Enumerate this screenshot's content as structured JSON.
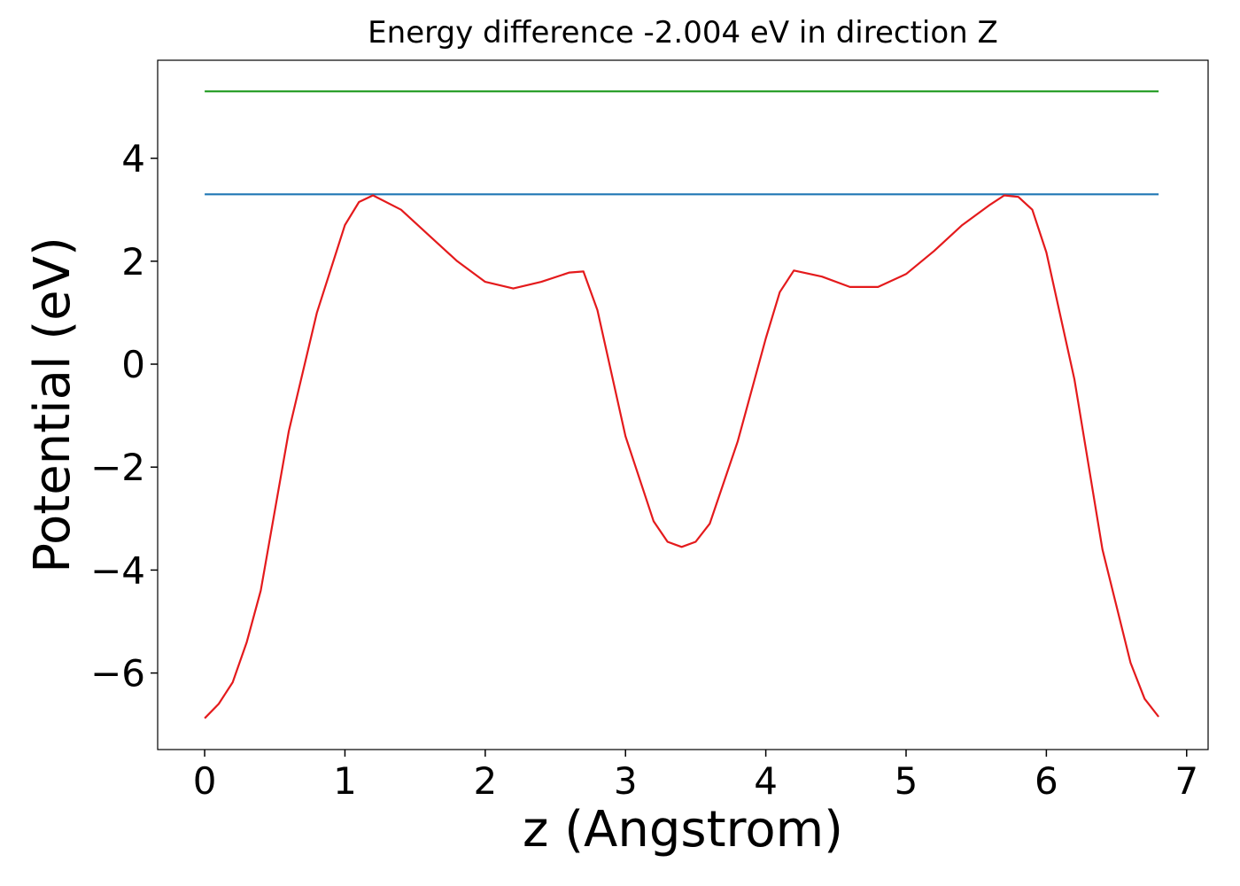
{
  "chart_data": {
    "type": "line",
    "title": "Energy difference -2.004 eV in direction Z",
    "x_label": "z (Angstrom)",
    "y_label": "Potential (eV)",
    "xlim": [
      -0.335,
      7.153
    ],
    "ylim": [
      -7.487,
      5.904
    ],
    "xticks": [
      0,
      1,
      2,
      3,
      4,
      5,
      6,
      7
    ],
    "yticks": [
      {
        "value": -6,
        "label": "−6"
      },
      {
        "value": -4,
        "label": "−4"
      },
      {
        "value": -2,
        "label": "−2"
      },
      0,
      2,
      4
    ],
    "series": [
      {
        "color": "#1f77b4",
        "x": [
          0,
          6.8
        ],
        "values": [
          3.3,
          3.3
        ]
      },
      {
        "color": "#2ca02c",
        "x": [
          0,
          6.8
        ],
        "values": [
          5.3,
          5.3
        ]
      },
      {
        "color": "#e41a1c",
        "x": [
          0,
          0.1,
          0.2,
          0.3,
          0.4,
          0.6,
          0.8,
          1.0,
          1.1,
          1.2,
          1.4,
          1.6,
          1.8,
          2.0,
          2.2,
          2.4,
          2.6,
          2.7,
          2.8,
          3.0,
          3.2,
          3.3,
          3.4,
          3.5,
          3.6,
          3.8,
          4.0,
          4.1,
          4.2,
          4.4,
          4.6,
          4.8,
          5.0,
          5.2,
          5.4,
          5.6,
          5.7,
          5.8,
          5.9,
          6.0,
          6.2,
          6.4,
          6.6,
          6.7,
          6.8
        ],
        "values": [
          -6.88,
          -6.6,
          -6.18,
          -5.4,
          -4.4,
          -1.3,
          1.0,
          2.7,
          3.15,
          3.28,
          3.0,
          2.5,
          2.0,
          1.6,
          1.47,
          1.6,
          1.78,
          1.8,
          1.05,
          -1.4,
          -3.05,
          -3.45,
          -3.55,
          -3.45,
          -3.1,
          -1.5,
          0.5,
          1.4,
          1.82,
          1.7,
          1.5,
          1.5,
          1.75,
          2.2,
          2.7,
          3.1,
          3.28,
          3.25,
          3.0,
          2.17,
          -0.3,
          -3.6,
          -5.8,
          -6.5,
          -6.85
        ]
      }
    ]
  }
}
